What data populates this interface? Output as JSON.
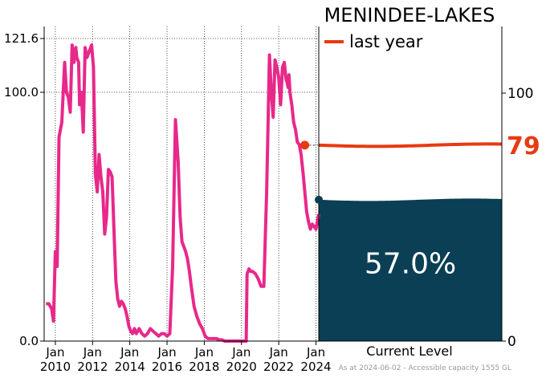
{
  "chart_data": {
    "type": "line",
    "title": "MENINDEE-LAKES",
    "ylabel": "",
    "xlabel": "",
    "ylim": [
      0,
      121.6
    ],
    "y_ticks_left": [
      0.0,
      100.0,
      121.6
    ],
    "y_ticks_left_labels": [
      "0.0",
      "100.0",
      "121.6"
    ],
    "y_ticks_right": [
      0,
      100
    ],
    "y_ticks_right_labels": [
      "0",
      "100"
    ],
    "x_range": [
      2009.4,
      2024.15
    ],
    "x_ticks": [
      2010,
      2012,
      2014,
      2016,
      2018,
      2020,
      2022,
      2024
    ],
    "x_tick_labels": [
      [
        "Jan",
        "2010"
      ],
      [
        "Jan",
        "2012"
      ],
      [
        "Jan",
        "2014"
      ],
      [
        "Jan",
        "2016"
      ],
      [
        "Jan",
        "2018"
      ],
      [
        "Jan",
        "2020"
      ],
      [
        "Jan",
        "2022"
      ],
      [
        "Jan",
        "2024"
      ]
    ],
    "grid": true,
    "legend": {
      "placement": "top-left of level panel",
      "label": "last year"
    },
    "series": [
      {
        "color": "#e8288a",
        "x": [
          2009.5,
          2009.65,
          2009.8,
          2009.9,
          2010.0,
          2010.1,
          2010.2,
          2010.35,
          2010.5,
          2010.6,
          2010.7,
          2010.8,
          2010.9,
          2011.0,
          2011.1,
          2011.15,
          2011.25,
          2011.3,
          2011.4,
          2011.5,
          2011.6,
          2011.7,
          2011.85,
          2011.95,
          2012.05,
          2012.15,
          2012.25,
          2012.35,
          2012.45,
          2012.55,
          2012.65,
          2012.75,
          2012.85,
          2012.95,
          2013.05,
          2013.15,
          2013.25,
          2013.35,
          2013.45,
          2013.55,
          2013.65,
          2013.75,
          2013.85,
          2013.95,
          2014.05,
          2014.15,
          2014.25,
          2014.35,
          2014.5,
          2014.65,
          2014.8,
          2014.95,
          2015.1,
          2015.25,
          2015.4,
          2015.55,
          2015.7,
          2015.85,
          2016.0,
          2016.15,
          2016.3,
          2016.45,
          2016.6,
          2016.7,
          2016.8,
          2016.9,
          2017.0,
          2017.1,
          2017.2,
          2017.3,
          2017.45,
          2017.6,
          2017.75,
          2017.9,
          2018.05,
          2018.2,
          2018.35,
          2018.5,
          2018.65,
          2018.8,
          2018.95,
          2019.1,
          2019.3,
          2019.5,
          2019.7,
          2019.9,
          2020.1,
          2020.25,
          2020.3,
          2020.4,
          2020.5,
          2020.6,
          2020.75,
          2020.9,
          2021.05,
          2021.2,
          2021.35,
          2021.5,
          2021.6,
          2021.7,
          2021.8,
          2021.9,
          2022.0,
          2022.1,
          2022.2,
          2022.3,
          2022.35,
          2022.4,
          2022.45,
          2022.5,
          2022.55,
          2022.6,
          2022.7,
          2022.8,
          2022.9,
          2023.0,
          2023.1,
          2023.2,
          2023.3,
          2023.4,
          2023.5,
          2023.6,
          2023.7,
          2023.8,
          2023.9,
          2024.0,
          2024.1,
          2024.15
        ],
        "y": [
          15,
          15,
          13,
          8,
          36,
          30,
          82,
          88,
          112,
          100,
          98,
          92,
          119,
          112,
          118,
          114,
          112,
          95,
          100,
          84,
          118,
          114,
          117,
          119,
          110,
          67,
          60,
          75,
          66,
          60,
          43,
          50,
          69,
          68,
          66,
          45,
          24,
          17,
          14,
          16,
          15,
          13,
          10,
          6,
          4,
          3,
          5,
          3,
          5,
          3,
          2,
          3,
          5,
          4,
          3,
          2,
          3,
          3,
          2,
          3,
          30,
          89,
          72,
          50,
          40,
          38,
          36,
          33,
          28,
          22,
          14,
          10,
          7,
          5,
          2,
          1,
          1,
          1,
          1,
          0.5,
          0.5,
          0,
          0,
          0,
          0,
          0,
          0,
          0,
          27,
          29,
          28,
          28,
          27,
          25,
          22,
          22,
          60,
          115,
          100,
          90,
          113,
          110,
          106,
          95,
          110,
          112,
          108,
          105,
          104,
          102,
          107,
          100,
          95,
          88,
          85,
          80,
          79,
          75,
          68,
          60,
          52,
          48,
          45,
          47,
          46,
          45,
          49,
          51
        ]
      }
    ],
    "last_year": {
      "value": 79,
      "label": "79",
      "color": "#e83a10"
    },
    "current_level": {
      "percent": 57.0,
      "label": "57.0%",
      "caption": "Current Level",
      "color": "#0a3f55"
    },
    "footnote": "As at 2024-06-02 - Accessible capacity 1555 GL"
  }
}
